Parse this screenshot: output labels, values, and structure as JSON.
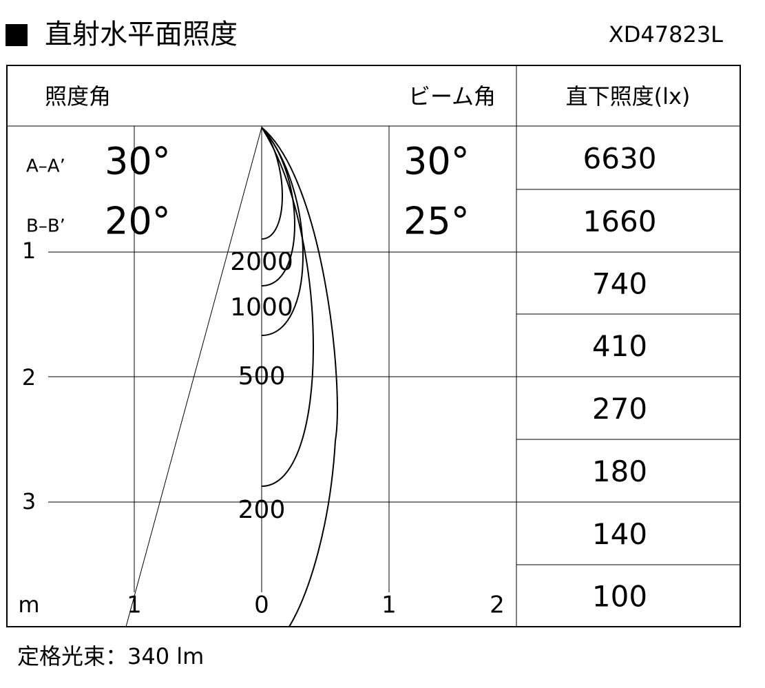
{
  "header": {
    "title": "直射水平面照度",
    "model": "XD47823L"
  },
  "table": {
    "headers": [
      "照度角",
      "ビーム角",
      "直下照度(lx)"
    ],
    "angles": [
      {
        "section": "A–A’",
        "illumination_angle": "30°",
        "beam_angle": "30°"
      },
      {
        "section": "B–B’",
        "illumination_angle": "20°",
        "beam_angle": "25°"
      }
    ],
    "illuminance": [
      "6630",
      "1660",
      "740",
      "410",
      "270",
      "180",
      "140",
      "100"
    ]
  },
  "diagram": {
    "depth_labels": [
      "1",
      "2",
      "3"
    ],
    "unit": "m",
    "horizontal_labels": [
      "1",
      "0",
      "1",
      "2"
    ],
    "contour_labels": [
      "2000",
      "1000",
      "500",
      "200"
    ]
  },
  "footer": {
    "rated_flux": "定格光束：340 lm"
  }
}
